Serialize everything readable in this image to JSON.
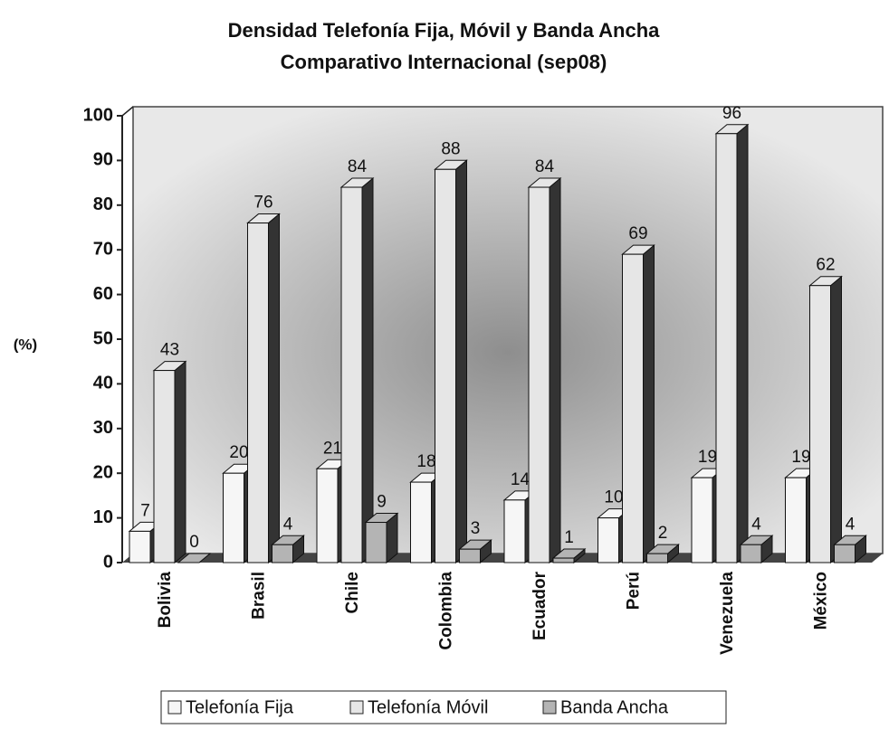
{
  "chart_data": {
    "type": "bar",
    "title": "Densidad Telefonía Fija, Móvil y Banda Ancha",
    "subtitle": "Comparativo Internacional (sep08)",
    "y_label": "(%)",
    "categories": [
      "Bolivia",
      "Brasil",
      "Chile",
      "Colombia",
      "Ecuador",
      "Perú",
      "Venezuela",
      "México"
    ],
    "series": [
      {
        "name": "Telefonía Fija",
        "color": "#f6f6f6",
        "values": [
          7,
          20,
          21,
          18,
          14,
          10,
          19,
          19
        ]
      },
      {
        "name": "Telefonía Móvil",
        "color": "#e6e6e6",
        "values": [
          43,
          76,
          84,
          88,
          84,
          69,
          96,
          62
        ]
      },
      {
        "name": "Banda Ancha",
        "color": "#b4b4b4",
        "values": [
          0,
          4,
          9,
          3,
          1,
          2,
          4,
          4
        ]
      }
    ],
    "ylim": [
      0,
      100
    ],
    "yticks": [
      0,
      10,
      20,
      30,
      40,
      50,
      60,
      70,
      80,
      90,
      100
    ],
    "legend": "bottom"
  }
}
